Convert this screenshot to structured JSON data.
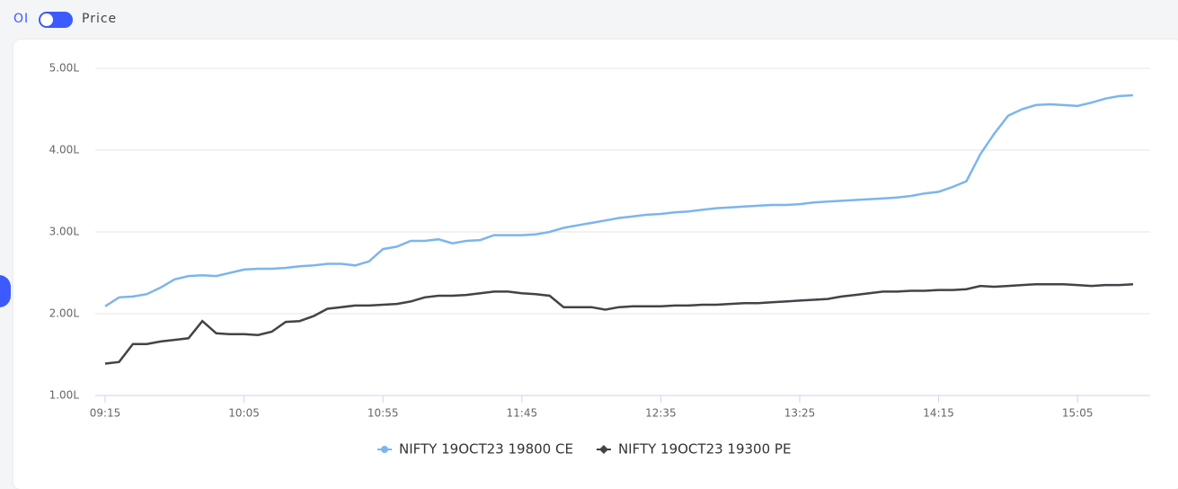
{
  "toggle": {
    "left": "OI",
    "right": "Price"
  },
  "chart_data": {
    "type": "line",
    "categories": [
      "09:15",
      null,
      null,
      null,
      null,
      null,
      null,
      null,
      null,
      null,
      "10:05",
      null,
      null,
      null,
      null,
      null,
      null,
      null,
      null,
      null,
      "10:55",
      null,
      null,
      null,
      null,
      null,
      null,
      null,
      null,
      null,
      "11:45",
      null,
      null,
      null,
      null,
      null,
      null,
      null,
      null,
      null,
      "12:35",
      null,
      null,
      null,
      null,
      null,
      null,
      null,
      null,
      null,
      "13:25",
      null,
      null,
      null,
      null,
      null,
      null,
      null,
      null,
      null,
      "14:15",
      null,
      null,
      null,
      null,
      null,
      null,
      null,
      null,
      null,
      "15:05",
      null,
      null,
      null,
      null
    ],
    "ylim": [
      1,
      5
    ],
    "yticks": [
      {
        "value": 1,
        "label": "1.00L"
      },
      {
        "value": 2,
        "label": "2.00L"
      },
      {
        "value": 3,
        "label": "3.00L"
      },
      {
        "value": 4,
        "label": "4.00L"
      },
      {
        "value": 5,
        "label": "5.00L"
      }
    ],
    "grid": true,
    "legend": "bottom",
    "series": [
      {
        "name": "NIFTY 19OCT23 19800 CE",
        "color": "#7cb5ec",
        "marker": "circle",
        "values": [
          2.09,
          2.2,
          2.21,
          2.24,
          2.32,
          2.42,
          2.46,
          2.47,
          2.46,
          2.5,
          2.54,
          2.55,
          2.55,
          2.56,
          2.58,
          2.59,
          2.61,
          2.61,
          2.59,
          2.64,
          2.79,
          2.82,
          2.89,
          2.89,
          2.91,
          2.86,
          2.89,
          2.9,
          2.96,
          2.96,
          2.96,
          2.97,
          3.0,
          3.05,
          3.08,
          3.11,
          3.14,
          3.17,
          3.19,
          3.21,
          3.22,
          3.24,
          3.25,
          3.27,
          3.29,
          3.3,
          3.31,
          3.32,
          3.33,
          3.33,
          3.34,
          3.36,
          3.37,
          3.38,
          3.39,
          3.4,
          3.41,
          3.42,
          3.44,
          3.47,
          3.49,
          3.55,
          3.62,
          3.95,
          4.2,
          4.42,
          4.5,
          4.55,
          4.56,
          4.55,
          4.54,
          4.58,
          4.63,
          4.66,
          4.67
        ]
      },
      {
        "name": "NIFTY 19OCT23 19300 PE",
        "color": "#434348",
        "marker": "diamond",
        "values": [
          1.39,
          1.41,
          1.63,
          1.63,
          1.66,
          1.68,
          1.7,
          1.91,
          1.76,
          1.75,
          1.75,
          1.74,
          1.78,
          1.9,
          1.91,
          1.97,
          2.06,
          2.08,
          2.1,
          2.1,
          2.11,
          2.12,
          2.15,
          2.2,
          2.22,
          2.22,
          2.23,
          2.25,
          2.27,
          2.27,
          2.25,
          2.24,
          2.22,
          2.08,
          2.08,
          2.08,
          2.05,
          2.08,
          2.09,
          2.09,
          2.09,
          2.1,
          2.1,
          2.11,
          2.11,
          2.12,
          2.13,
          2.13,
          2.14,
          2.15,
          2.16,
          2.17,
          2.18,
          2.21,
          2.23,
          2.25,
          2.27,
          2.27,
          2.28,
          2.28,
          2.29,
          2.29,
          2.3,
          2.34,
          2.33,
          2.34,
          2.35,
          2.36,
          2.36,
          2.36,
          2.35,
          2.34,
          2.35,
          2.35,
          2.36
        ]
      }
    ]
  }
}
